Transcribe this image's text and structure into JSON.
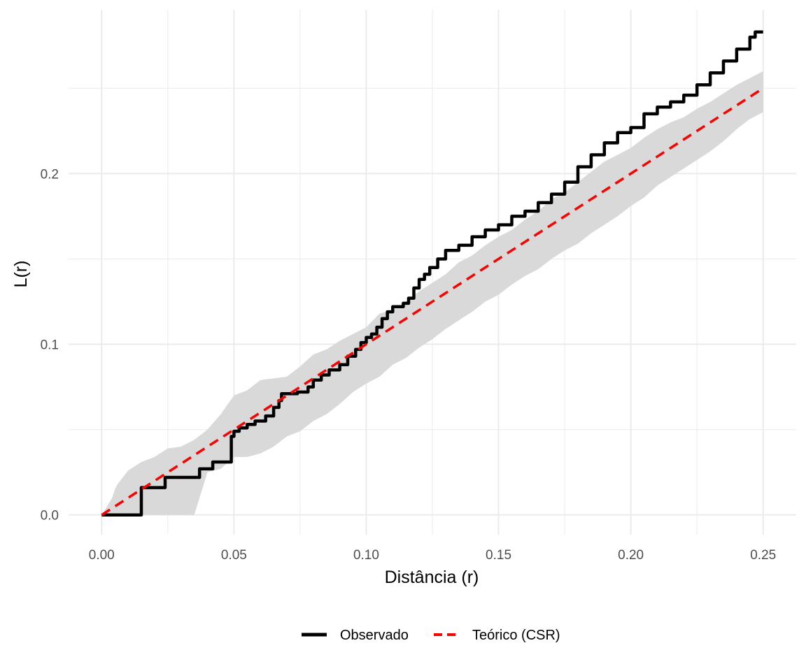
{
  "chart_data": {
    "type": "line",
    "title": "",
    "xlabel": "Distância (r)",
    "ylabel": "L(r)",
    "xlim": [
      -0.0125,
      0.2625
    ],
    "ylim": [
      -0.0116,
      0.296
    ],
    "x_ticks": [
      0.0,
      0.05,
      0.1,
      0.15,
      0.2,
      0.25
    ],
    "x_tick_labels": [
      "0.00",
      "0.05",
      "0.10",
      "0.15",
      "0.20",
      "0.25"
    ],
    "y_ticks": [
      0.0,
      0.1,
      0.2
    ],
    "y_tick_labels": [
      "0.0",
      "0.1",
      "0.2"
    ],
    "grid": true,
    "legend_position": "bottom",
    "colors": {
      "observed": "#000000",
      "theoretical": "#ff0000",
      "envelope": "#d9d9d9"
    },
    "envelope": {
      "x": [
        0.0,
        0.004,
        0.005,
        0.006,
        0.01,
        0.015,
        0.02,
        0.025,
        0.03,
        0.035,
        0.04,
        0.045,
        0.05,
        0.055,
        0.06,
        0.065,
        0.07,
        0.075,
        0.08,
        0.085,
        0.09,
        0.095,
        0.1,
        0.105,
        0.11,
        0.115,
        0.12,
        0.125,
        0.13,
        0.135,
        0.14,
        0.145,
        0.15,
        0.155,
        0.16,
        0.165,
        0.17,
        0.175,
        0.18,
        0.185,
        0.19,
        0.195,
        0.2,
        0.205,
        0.21,
        0.215,
        0.22,
        0.225,
        0.23,
        0.235,
        0.24,
        0.245,
        0.25
      ],
      "upper": [
        0.0,
        0.01,
        0.015,
        0.018,
        0.026,
        0.031,
        0.034,
        0.039,
        0.04,
        0.044,
        0.05,
        0.059,
        0.07,
        0.073,
        0.079,
        0.08,
        0.081,
        0.087,
        0.094,
        0.097,
        0.102,
        0.106,
        0.11,
        0.118,
        0.12,
        0.125,
        0.131,
        0.136,
        0.141,
        0.148,
        0.152,
        0.158,
        0.163,
        0.167,
        0.173,
        0.178,
        0.185,
        0.189,
        0.195,
        0.201,
        0.207,
        0.211,
        0.215,
        0.221,
        0.226,
        0.23,
        0.233,
        0.238,
        0.242,
        0.247,
        0.252,
        0.256,
        0.26
      ],
      "lower": [
        0.0,
        0.0,
        0.0,
        0.0,
        0.0,
        0.0,
        0.0,
        0.0,
        0.0,
        0.0,
        0.025,
        0.027,
        0.034,
        0.034,
        0.036,
        0.04,
        0.046,
        0.049,
        0.055,
        0.059,
        0.065,
        0.072,
        0.077,
        0.081,
        0.088,
        0.092,
        0.098,
        0.103,
        0.109,
        0.114,
        0.119,
        0.125,
        0.129,
        0.135,
        0.14,
        0.144,
        0.15,
        0.155,
        0.159,
        0.165,
        0.17,
        0.175,
        0.181,
        0.186,
        0.193,
        0.198,
        0.203,
        0.208,
        0.213,
        0.219,
        0.226,
        0.232,
        0.236
      ]
    },
    "series": [
      {
        "name": "Observado",
        "style": "solid",
        "step": true,
        "x": [
          0.0,
          0.014,
          0.015,
          0.023,
          0.024,
          0.036,
          0.037,
          0.041,
          0.042,
          0.048,
          0.049,
          0.05,
          0.052,
          0.055,
          0.058,
          0.062,
          0.065,
          0.067,
          0.068,
          0.071,
          0.074,
          0.078,
          0.08,
          0.083,
          0.086,
          0.09,
          0.093,
          0.096,
          0.098,
          0.1,
          0.102,
          0.104,
          0.106,
          0.108,
          0.11,
          0.114,
          0.116,
          0.118,
          0.12,
          0.122,
          0.124,
          0.127,
          0.13,
          0.135,
          0.14,
          0.145,
          0.15,
          0.155,
          0.16,
          0.165,
          0.17,
          0.175,
          0.18,
          0.185,
          0.19,
          0.195,
          0.2,
          0.205,
          0.21,
          0.215,
          0.22,
          0.225,
          0.23,
          0.235,
          0.24,
          0.245,
          0.247,
          0.25
        ],
        "y": [
          0.0,
          0.0,
          0.016,
          0.016,
          0.022,
          0.022,
          0.027,
          0.027,
          0.031,
          0.031,
          0.046,
          0.049,
          0.051,
          0.053,
          0.055,
          0.058,
          0.063,
          0.067,
          0.071,
          0.071,
          0.072,
          0.075,
          0.079,
          0.082,
          0.085,
          0.088,
          0.093,
          0.097,
          0.101,
          0.104,
          0.106,
          0.11,
          0.115,
          0.119,
          0.122,
          0.124,
          0.127,
          0.133,
          0.138,
          0.141,
          0.145,
          0.15,
          0.155,
          0.158,
          0.163,
          0.167,
          0.17,
          0.175,
          0.178,
          0.183,
          0.188,
          0.195,
          0.204,
          0.211,
          0.218,
          0.224,
          0.227,
          0.235,
          0.239,
          0.242,
          0.246,
          0.252,
          0.259,
          0.266,
          0.273,
          0.28,
          0.283,
          0.283
        ]
      },
      {
        "name": "Teórico (CSR)",
        "style": "dashed",
        "x": [
          0.0,
          0.25
        ],
        "y": [
          0.0,
          0.25
        ]
      }
    ]
  },
  "legend": {
    "items": [
      {
        "label": "Observado",
        "style": "solid",
        "color": "#000000"
      },
      {
        "label": "Teórico (CSR)",
        "style": "dashed",
        "color": "#ff0000"
      }
    ]
  }
}
